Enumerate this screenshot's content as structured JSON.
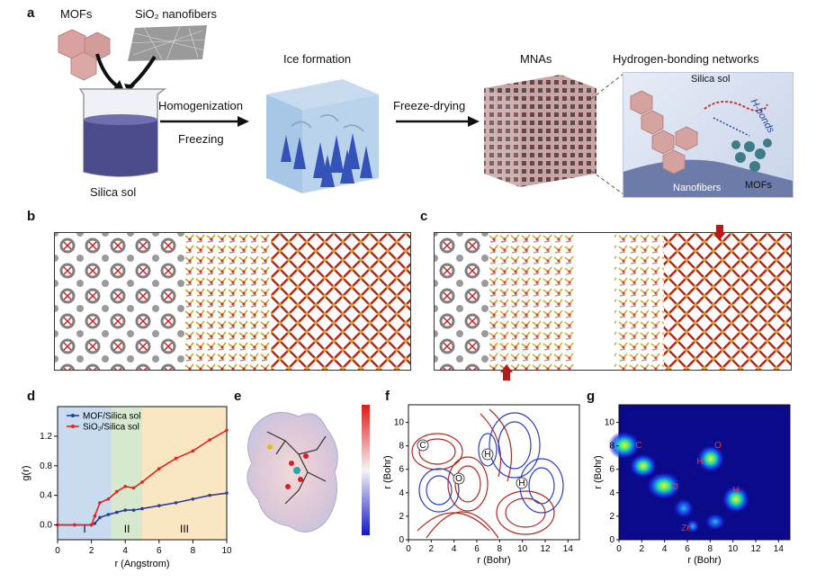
{
  "panel_labels": {
    "a": "a",
    "b": "b",
    "c": "c",
    "d": "d",
    "e": "e",
    "f": "f",
    "g": "g"
  },
  "panel_a": {
    "mofs": "MOFs",
    "sio2_nanofibers": "SiO₂ nanofibers",
    "silica_sol": "Silica sol",
    "homogenization": "Homogenization",
    "freezing": "Freezing",
    "ice_formation": "Ice formation",
    "freeze_drying": "Freeze-drying",
    "mnas": "MNAs",
    "hbond_networks": "Hydrogen-bonding networks",
    "inset_silica_sol": "Silica sol",
    "h_bonds": "H-bonds",
    "nanofibers": "Nanofibers",
    "inset_mofs": "MOFs"
  },
  "chart_data": {
    "type": "line",
    "xlabel": "r (Angstrom)",
    "ylabel": "g(r)",
    "xlim": [
      0,
      10
    ],
    "ylim": [
      -0.2,
      1.6
    ],
    "xticks": [
      "0",
      "2",
      "4",
      "6",
      "8",
      "10"
    ],
    "yticks": [
      "0.0",
      "0.4",
      "0.8",
      "1.2"
    ],
    "regions": [
      {
        "label": "I",
        "from": 0,
        "to": 3.2,
        "color": "#c9dcef"
      },
      {
        "label": "II",
        "from": 3.2,
        "to": 5.0,
        "color": "#d6e9cf"
      },
      {
        "label": "III",
        "from": 5.0,
        "to": 10,
        "color": "#fbe6c4"
      }
    ],
    "series": [
      {
        "name": "MOF/Silica sol",
        "color": "#2a3f95",
        "x": [
          0,
          1,
          2,
          2.2,
          2.5,
          3,
          3.5,
          4,
          4.5,
          5,
          6,
          7,
          8,
          9,
          10
        ],
        "y": [
          0,
          0,
          0,
          0.02,
          0.1,
          0.14,
          0.17,
          0.2,
          0.2,
          0.22,
          0.26,
          0.3,
          0.35,
          0.4,
          0.43
        ]
      },
      {
        "name": "SiO₂/Silica sol",
        "color": "#e8201e",
        "x": [
          0,
          1,
          2,
          2.2,
          2.5,
          3,
          3.5,
          4,
          4.5,
          5,
          6,
          7,
          8,
          9,
          10
        ],
        "y": [
          0,
          0,
          0,
          0.12,
          0.3,
          0.35,
          0.45,
          0.52,
          0.5,
          0.58,
          0.76,
          0.9,
          1.0,
          1.15,
          1.28
        ]
      }
    ]
  },
  "panel_f": {
    "ylabel": "r (Bohr)",
    "xlabel": "r (Bohr)",
    "xticks": [
      "0",
      "2",
      "4",
      "6",
      "8",
      "10",
      "12",
      "14"
    ],
    "yticks": [
      "0",
      "2",
      "4",
      "6",
      "8",
      "10"
    ],
    "atoms": [
      "C",
      "H",
      "H",
      "O"
    ]
  },
  "panel_g": {
    "ylabel": "r (Bohr)",
    "xlabel": "r (Bohr)",
    "xticks": [
      "0",
      "2",
      "4",
      "6",
      "8",
      "10",
      "12",
      "14"
    ],
    "yticks": [
      "0",
      "2",
      "4",
      "6",
      "8",
      "10"
    ],
    "atoms": [
      "C",
      "O",
      "H",
      "O",
      "H",
      "Zr"
    ]
  }
}
